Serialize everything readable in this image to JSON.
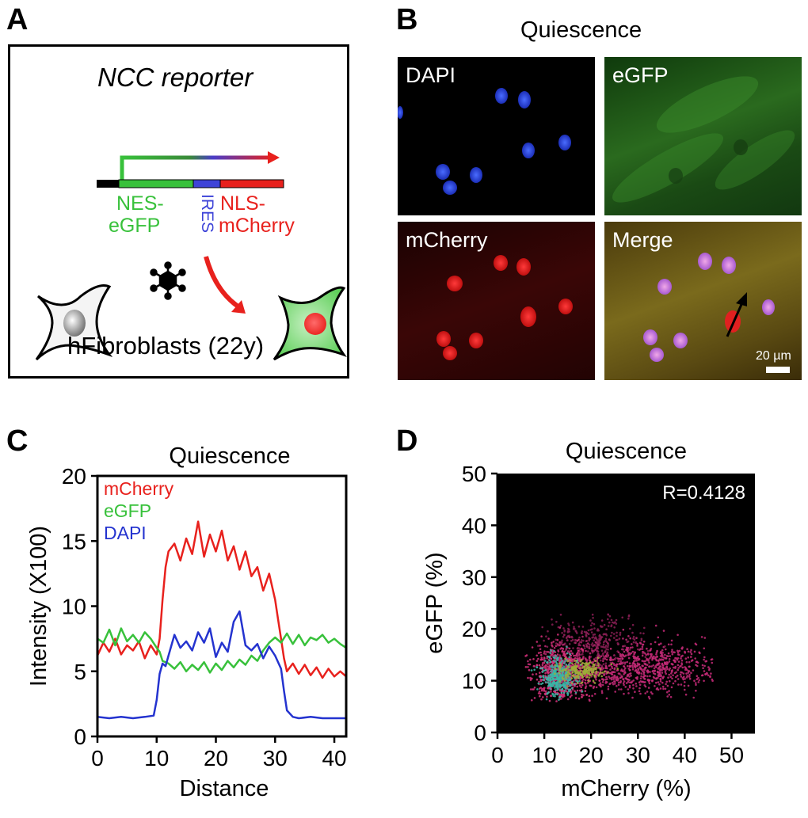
{
  "panelA": {
    "letter": "A",
    "title": "NCC reporter",
    "label_nes": "NES-",
    "label_egfp": "eGFP",
    "label_ires": "IRES",
    "label_nls": "NLS-",
    "label_mcherry": "mCherry",
    "caption": "hFibroblasts (22y)"
  },
  "panelB": {
    "letter": "B",
    "title": "Quiescence",
    "images": [
      {
        "label": "DAPI"
      },
      {
        "label": "eGFP"
      },
      {
        "label": "mCherry"
      },
      {
        "label": "Merge"
      }
    ],
    "scale_label": "20 µm"
  },
  "panelC": {
    "letter": "C",
    "chart_data": {
      "type": "line",
      "title": "Quiescence",
      "xlabel": "Distance",
      "ylabel": "Intensity (X100)",
      "xlim": [
        0,
        42
      ],
      "ylim": [
        0,
        20
      ],
      "xticks": [
        0,
        10,
        20,
        30,
        40
      ],
      "yticks": [
        0,
        5,
        10,
        15,
        20
      ],
      "legend_position": "top-left",
      "series": [
        {
          "name": "mCherry",
          "color": "#e8211d",
          "x": [
            0,
            1,
            2,
            3,
            4,
            5,
            6,
            7,
            8,
            9,
            10,
            10.5,
            11,
            11.5,
            12,
            13,
            14,
            15,
            16,
            17,
            18,
            19,
            20,
            21,
            22,
            23,
            24,
            25,
            26,
            27,
            28,
            29,
            30,
            30.5,
            31,
            31.5,
            32,
            33,
            34,
            35,
            36,
            37,
            38,
            39,
            40,
            41,
            42
          ],
          "y": [
            6.2,
            7.2,
            6.5,
            7.5,
            6.3,
            7.0,
            6.6,
            7.3,
            6.0,
            7.0,
            6.3,
            7.5,
            10.5,
            13.0,
            14.2,
            14.8,
            13.5,
            15.2,
            14.0,
            16.5,
            13.8,
            15.5,
            14.2,
            15.8,
            13.5,
            14.6,
            12.8,
            14.2,
            12.3,
            13.0,
            11.2,
            12.5,
            10.5,
            9.0,
            7.5,
            6.0,
            5.0,
            5.6,
            4.8,
            5.5,
            4.7,
            5.3,
            4.5,
            5.2,
            4.6,
            5.0,
            4.6
          ]
        },
        {
          "name": "eGFP",
          "color": "#38c13b",
          "x": [
            0,
            1,
            2,
            3,
            4,
            5,
            6,
            7,
            8,
            9,
            10,
            10.5,
            11,
            12,
            13,
            14,
            15,
            16,
            17,
            18,
            19,
            20,
            21,
            22,
            23,
            24,
            25,
            26,
            27,
            28,
            29,
            30,
            31,
            32,
            33,
            34,
            35,
            36,
            37,
            38,
            39,
            40,
            41,
            42
          ],
          "y": [
            7.5,
            7.2,
            8.2,
            7.0,
            8.3,
            7.3,
            7.8,
            7.2,
            8.0,
            7.5,
            6.8,
            6.5,
            5.8,
            5.6,
            5.2,
            5.7,
            5.0,
            5.5,
            5.1,
            5.7,
            4.9,
            5.6,
            5.1,
            5.8,
            5.3,
            5.9,
            5.5,
            6.2,
            5.8,
            6.6,
            7.2,
            7.6,
            7.2,
            7.9,
            7.1,
            7.8,
            7.0,
            7.6,
            7.4,
            7.8,
            7.2,
            7.5,
            7.1,
            6.8
          ]
        },
        {
          "name": "DAPI",
          "color": "#2433cf",
          "x": [
            0,
            2,
            4,
            6,
            8,
            9.5,
            10,
            10.5,
            11,
            11.5,
            12,
            13,
            14,
            15,
            16,
            17,
            18,
            19,
            20,
            21,
            22,
            23,
            24,
            25,
            26,
            27,
            28,
            29,
            30,
            31,
            31.5,
            32,
            33,
            34,
            36,
            38,
            40,
            42
          ],
          "y": [
            1.5,
            1.4,
            1.5,
            1.4,
            1.5,
            1.6,
            2.8,
            4.8,
            5.6,
            5.4,
            6.2,
            7.8,
            6.8,
            7.3,
            6.6,
            8.0,
            7.2,
            8.3,
            6.1,
            7.2,
            6.5,
            8.8,
            9.6,
            7.0,
            6.6,
            7.1,
            6.0,
            6.9,
            6.2,
            5.2,
            3.5,
            2.0,
            1.5,
            1.4,
            1.5,
            1.4,
            1.4,
            1.4
          ]
        }
      ]
    }
  },
  "panelD": {
    "letter": "D",
    "chart_data": {
      "type": "scatter",
      "title": "Quiescence",
      "xlabel": "mCherry (%)",
      "ylabel": "eGFP (%)",
      "xlim": [
        0,
        55
      ],
      "ylim": [
        0,
        50
      ],
      "xticks": [
        0,
        10,
        20,
        30,
        40,
        50
      ],
      "yticks": [
        0,
        10,
        20,
        30,
        40,
        50
      ],
      "annotation": "R=0.4128",
      "background": "#000000",
      "density_clusters": [
        {
          "cx": 14,
          "cy": 11.5,
          "sx": 3.5,
          "sy": 3.0,
          "color": "#d6307a"
        },
        {
          "cx": 30,
          "cy": 12.5,
          "sx": 9.0,
          "sy": 2.5,
          "color": "#c62a78"
        },
        {
          "cx": 20,
          "cy": 18,
          "sx": 5.0,
          "sy": 2.5,
          "color": "#8a1e55"
        },
        {
          "cx": 13,
          "cy": 10.5,
          "sx": 1.8,
          "sy": 2.0,
          "color": "#3bb5a6"
        },
        {
          "cx": 18,
          "cy": 12,
          "sx": 2.5,
          "sy": 1.0,
          "color": "#9fae38"
        }
      ]
    }
  }
}
